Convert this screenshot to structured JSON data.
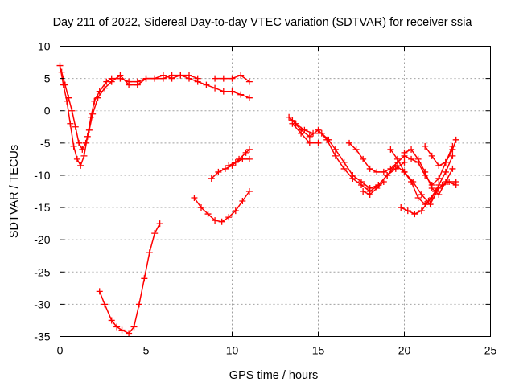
{
  "chart_data": {
    "type": "scatter",
    "title": "Day 211 of 2022, Sidereal Day-to-day VTEC variation (SDTVAR) for receiver ssia",
    "xlabel": "GPS time / hours",
    "ylabel": "SDTVAR / TECUs",
    "xlim": [
      0,
      25
    ],
    "ylim": [
      -35,
      10
    ],
    "x_ticks": [
      "0",
      "5",
      "10",
      "15",
      "20",
      "25"
    ],
    "y_ticks": [
      "10",
      "5",
      "0",
      "-5",
      "-10",
      "-15",
      "-20",
      "-25",
      "-30",
      "-35"
    ],
    "grid": true,
    "marker": "plus",
    "color": "#ff0000",
    "series": [
      {
        "x": [
          0.0,
          0.2,
          0.4,
          0.6,
          0.8,
          1.0,
          1.2,
          1.4,
          1.6,
          1.8,
          2.0,
          2.3,
          2.7,
          3.0,
          3.5,
          4.0,
          4.5,
          5.0,
          5.5,
          6.0,
          6.5,
          7.0,
          7.5,
          8.0,
          8.5,
          9.0,
          9.5,
          10.0,
          10.5,
          11.0
        ],
        "y": [
          7.0,
          4.0,
          1.5,
          -2.0,
          -5.5,
          -7.5,
          -8.5,
          -7.0,
          -4.0,
          -1.0,
          1.5,
          3.0,
          4.5,
          5.0,
          5.0,
          4.5,
          4.5,
          5.0,
          5.0,
          5.0,
          5.5,
          5.5,
          5.0,
          4.5,
          4.0,
          3.5,
          3.0,
          3.0,
          2.5,
          2.0
        ]
      },
      {
        "x": [
          0.1,
          0.3,
          0.5,
          0.7,
          0.9,
          1.1,
          1.3,
          1.5,
          1.7,
          1.9,
          2.2,
          2.6,
          3.0,
          3.5,
          4.0,
          4.5,
          5.0,
          5.5,
          6.0,
          6.5,
          7.0,
          7.5,
          8.0
        ],
        "y": [
          6.0,
          4.0,
          2.0,
          0.0,
          -2.5,
          -5.0,
          -6.0,
          -5.0,
          -3.0,
          -0.5,
          2.0,
          3.5,
          4.5,
          5.5,
          4.0,
          4.0,
          5.0,
          5.0,
          5.5,
          5.0,
          5.5,
          5.5,
          5.0
        ]
      },
      {
        "x": [
          9.0,
          9.5,
          10.0,
          10.5,
          11.0
        ],
        "y": [
          5.0,
          5.0,
          5.0,
          5.5,
          4.5
        ]
      },
      {
        "x": [
          2.3,
          2.6,
          3.0,
          3.3,
          3.6,
          4.0,
          4.3,
          4.6,
          4.9,
          5.2,
          5.5,
          5.8
        ],
        "y": [
          -28.0,
          -30.0,
          -32.5,
          -33.5,
          -34.0,
          -34.5,
          -33.5,
          -30.0,
          -26.0,
          -22.0,
          -19.0,
          -17.5
        ]
      },
      {
        "x": [
          7.8,
          8.2,
          8.6,
          9.0,
          9.4,
          9.8,
          10.2,
          10.6,
          11.0
        ],
        "y": [
          -13.5,
          -15.0,
          -16.0,
          -17.0,
          -17.2,
          -16.5,
          -15.5,
          -14.0,
          -12.5
        ]
      },
      {
        "x": [
          8.8,
          9.2,
          9.6,
          10.0,
          10.4,
          10.8,
          11.0
        ],
        "y": [
          -10.5,
          -9.5,
          -9.0,
          -8.5,
          -7.5,
          -6.5,
          -6.0
        ]
      },
      {
        "x": [
          9.8,
          10.2,
          10.6,
          11.0
        ],
        "y": [
          -8.5,
          -8.0,
          -7.5,
          -7.5
        ]
      },
      {
        "x": [
          13.3,
          13.7,
          14.2,
          14.7,
          15.2,
          15.6,
          16.0,
          16.5,
          17.0,
          17.5,
          18.0,
          18.5,
          19.0,
          19.5,
          20.0,
          20.5,
          21.0,
          21.5,
          22.0,
          22.5,
          23.0
        ],
        "y": [
          -1.0,
          -2.0,
          -3.0,
          -3.5,
          -3.5,
          -4.5,
          -6.0,
          -8.0,
          -10.0,
          -11.0,
          -12.0,
          -11.5,
          -10.0,
          -8.5,
          -9.5,
          -11.0,
          -13.0,
          -14.5,
          -12.0,
          -11.0,
          -11.5
        ]
      },
      {
        "x": [
          13.5,
          14.0,
          14.5,
          15.0,
          15.5,
          16.0,
          16.5,
          17.0,
          17.5,
          18.0,
          18.5,
          19.0,
          19.5,
          20.0
        ],
        "y": [
          -1.5,
          -3.0,
          -4.0,
          -3.0,
          -4.5,
          -7.0,
          -9.0,
          -10.5,
          -11.5,
          -12.5,
          -11.5,
          -10.0,
          -9.0,
          -8.0
        ]
      },
      {
        "x": [
          13.5,
          14.0,
          14.5,
          15.0
        ],
        "y": [
          -2.0,
          -3.5,
          -5.0,
          -5.0
        ]
      },
      {
        "x": [
          16.8,
          17.2,
          17.6,
          18.0,
          18.4,
          18.8,
          19.2,
          19.6,
          20.0,
          20.4,
          20.8,
          21.2,
          21.6,
          22.0,
          22.4,
          22.8
        ],
        "y": [
          -5.0,
          -6.0,
          -7.5,
          -9.0,
          -9.5,
          -9.5,
          -9.0,
          -8.0,
          -7.0,
          -7.5,
          -8.0,
          -10.0,
          -11.5,
          -10.5,
          -8.0,
          -5.5
        ]
      },
      {
        "x": [
          17.6,
          18.0,
          18.4,
          18.8
        ],
        "y": [
          -12.5,
          -13.0,
          -12.0,
          -11.0
        ]
      },
      {
        "x": [
          19.2,
          19.6,
          20.0,
          20.4,
          20.8,
          21.2,
          21.6,
          22.0,
          22.4,
          22.8
        ],
        "y": [
          -6.0,
          -7.5,
          -9.5,
          -11.0,
          -13.5,
          -14.5,
          -13.5,
          -11.5,
          -9.5,
          -7.0
        ]
      },
      {
        "x": [
          19.8,
          20.2,
          20.6,
          21.0,
          21.4,
          21.8,
          22.2,
          22.6,
          23.0
        ],
        "y": [
          -15.0,
          -15.5,
          -16.0,
          -15.5,
          -14.0,
          -12.5,
          -11.5,
          -11.0,
          -11.0
        ]
      },
      {
        "x": [
          20.0,
          20.4,
          20.8,
          21.2,
          21.6,
          22.0,
          22.4,
          22.8
        ],
        "y": [
          -6.5,
          -6.0,
          -7.5,
          -9.5,
          -12.0,
          -13.0,
          -11.0,
          -9.0
        ]
      },
      {
        "x": [
          21.2,
          21.6,
          22.0,
          22.4,
          22.8,
          23.0
        ],
        "y": [
          -5.5,
          -7.0,
          -8.5,
          -8.0,
          -6.0,
          -4.5
        ]
      }
    ]
  }
}
